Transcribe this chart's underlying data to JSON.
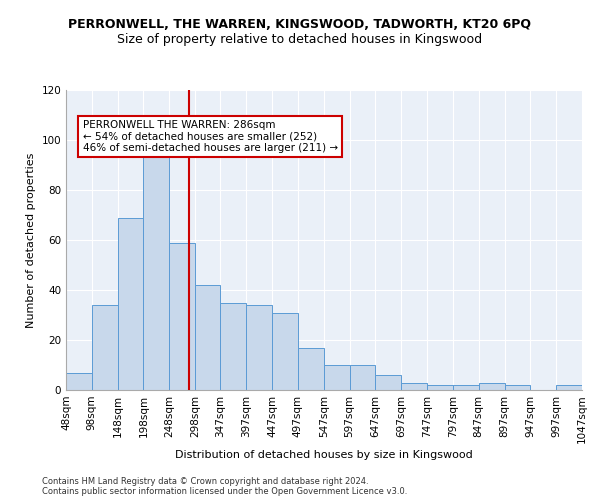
{
  "title1": "PERRONWELL, THE WARREN, KINGSWOOD, TADWORTH, KT20 6PQ",
  "title2": "Size of property relative to detached houses in Kingswood",
  "xlabel": "Distribution of detached houses by size in Kingswood",
  "ylabel": "Number of detached properties",
  "footnote1": "Contains HM Land Registry data © Crown copyright and database right 2024.",
  "footnote2": "Contains public sector information licensed under the Open Government Licence v3.0.",
  "bar_edges": [
    48,
    98,
    148,
    198,
    248,
    298,
    347,
    397,
    447,
    497,
    547,
    597,
    647,
    697,
    747,
    797,
    847,
    897,
    947,
    997,
    1047
  ],
  "bar_heights": [
    7,
    34,
    69,
    98,
    59,
    42,
    35,
    34,
    31,
    17,
    10,
    10,
    6,
    3,
    2,
    2,
    3,
    2,
    0,
    2
  ],
  "bar_color": "#c8d8eb",
  "bar_edge_color": "#5b9bd5",
  "vline_x": 286,
  "vline_color": "#cc0000",
  "annotation_text": "PERRONWELL THE WARREN: 286sqm\n← 54% of detached houses are smaller (252)\n46% of semi-detached houses are larger (211) →",
  "annotation_box_color": "#ffffff",
  "annotation_box_edge": "#cc0000",
  "ylim": [
    0,
    120
  ],
  "yticks": [
    0,
    20,
    40,
    60,
    80,
    100,
    120
  ],
  "xtick_labels": [
    "48sqm",
    "98sqm",
    "148sqm",
    "198sqm",
    "248sqm",
    "298sqm",
    "347sqm",
    "397sqm",
    "447sqm",
    "497sqm",
    "547sqm",
    "597sqm",
    "647sqm",
    "697sqm",
    "747sqm",
    "797sqm",
    "847sqm",
    "897sqm",
    "947sqm",
    "997sqm",
    "1047sqm"
  ],
  "bg_color": "#eaf0f8",
  "title1_fontsize": 9,
  "title2_fontsize": 9,
  "ylabel_fontsize": 8,
  "xlabel_fontsize": 8,
  "tick_fontsize": 7.5,
  "annot_fontsize": 7.5,
  "footnote_fontsize": 6
}
